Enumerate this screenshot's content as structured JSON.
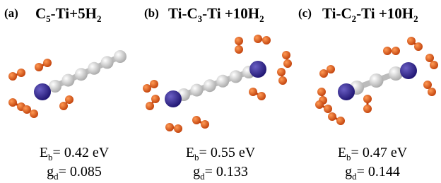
{
  "panels": [
    {
      "label": "(a)",
      "title": [
        "C",
        "5",
        "-Ti+5H",
        "2"
      ],
      "eb": [
        "E",
        "b",
        "= 0.42 eV"
      ],
      "gd": [
        "g",
        "d",
        "= 0.085"
      ]
    },
    {
      "label": "(b)",
      "title": [
        "Ti-C",
        "3",
        "-Ti +10H",
        "2"
      ],
      "eb": [
        "E",
        "b",
        "= 0.55 eV"
      ],
      "gd": [
        "g",
        "d",
        "= 0.133"
      ]
    },
    {
      "label": "(c)",
      "title": [
        "Ti-C",
        "2",
        "-Ti +10H",
        "2"
      ],
      "eb": [
        "E",
        "b",
        "= 0.47 eV"
      ],
      "gd": [
        "g",
        "d",
        "= 0.144"
      ]
    }
  ]
}
